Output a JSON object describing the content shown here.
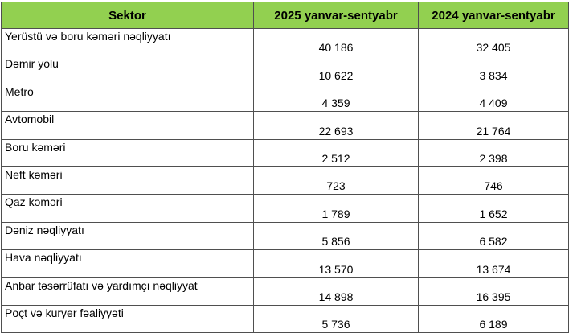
{
  "colors": {
    "header_background": "#92d050",
    "border": "#4f4f4f"
  },
  "table": {
    "headers": [
      "Sektor",
      "2025 yanvar-sentyabr",
      "2024 yanvar-sentyabr"
    ],
    "rows": [
      {
        "sector": "Yerüstü və boru kəməri nəqliyyatı",
        "y2025": "40 186",
        "y2024": "32 405"
      },
      {
        "sector": "Dəmir yolu",
        "y2025": "10 622",
        "y2024": "3 834"
      },
      {
        "sector": "Metro",
        "y2025": "4 359",
        "y2024": "4 409"
      },
      {
        "sector": "Avtomobil",
        "y2025": "22 693",
        "y2024": "21 764"
      },
      {
        "sector": "Boru kəməri",
        "y2025": "2 512",
        "y2024": "2 398"
      },
      {
        "sector": "Neft kəməri",
        "y2025": "723",
        "y2024": "746"
      },
      {
        "sector": "Qaz kəməri",
        "y2025": "1 789",
        "y2024": "1 652"
      },
      {
        "sector": "Dəniz nəqliyyatı",
        "y2025": "5 856",
        "y2024": "6 582"
      },
      {
        "sector": "Hava nəqliyyatı",
        "y2025": "13 570",
        "y2024": "13 674"
      },
      {
        "sector": "Anbar təsərrüfatı və yardımçı nəqliyyat",
        "y2025": "14 898",
        "y2024": "16 395"
      },
      {
        "sector": "Poçt və kuryer fəaliyyəti",
        "y2025": "5 736",
        "y2024": "6 189"
      }
    ]
  }
}
